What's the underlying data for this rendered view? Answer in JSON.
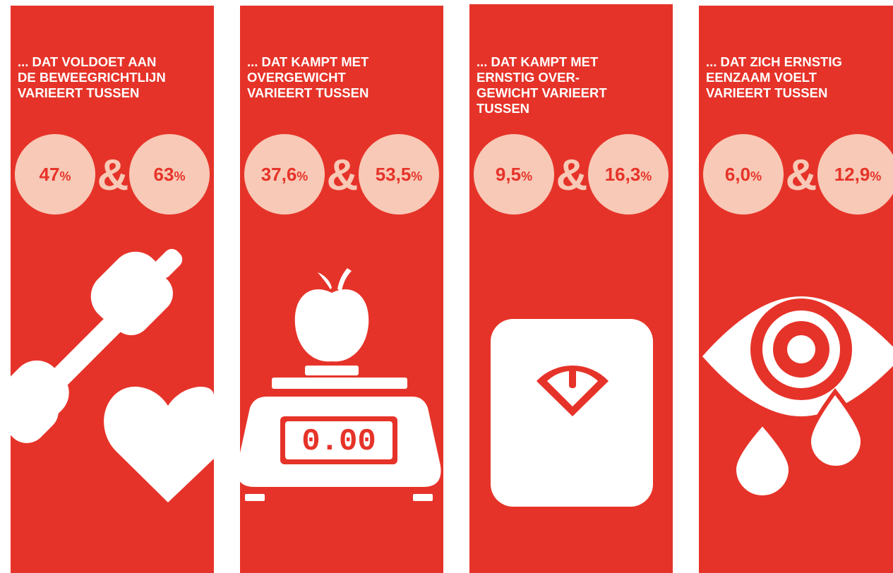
{
  "connector": "&",
  "unit": "%",
  "panels": [
    {
      "heading": [
        "... DAT VOLDOET AAN",
        "DE BEWEEGRICHTLIJN",
        "VARIEERT TUSSEN"
      ],
      "low": "47",
      "high": "63"
    },
    {
      "heading": [
        "... DAT KAMPT MET",
        "OVERGEWICHT",
        "VARIEERT TUSSEN"
      ],
      "low": "37,6",
      "high": "53,5",
      "display": "0.00"
    },
    {
      "heading": [
        "... DAT KAMPT MET",
        "ERNSTIG OVER-",
        "GEWICHT VARIEERT",
        "TUSSEN"
      ],
      "low": "9,5",
      "high": "16,3"
    },
    {
      "heading": [
        "... DAT ZICH ERNSTIG",
        "EENZAAM VOELT",
        "VARIEERT TUSSEN"
      ],
      "low": "6,0",
      "high": "12,9"
    }
  ]
}
